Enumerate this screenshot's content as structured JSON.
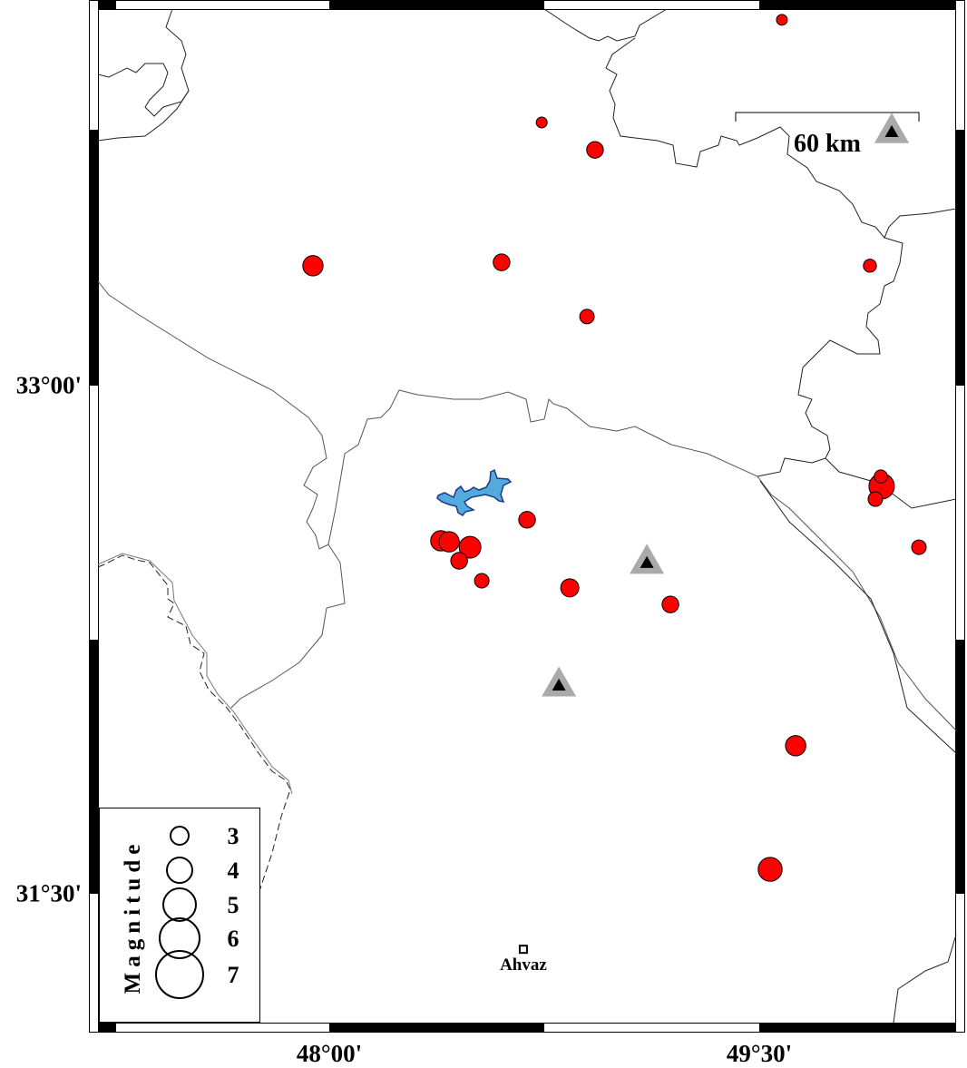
{
  "map": {
    "lat_labels": [
      "33°00'",
      "31°30'"
    ],
    "lon_labels": [
      "48°00'",
      "49°30'"
    ],
    "extent": {
      "lon_min": 47.2,
      "lon_max": 50.2,
      "lat_min": 31.2,
      "lat_max": 34.1
    },
    "colors": {
      "event_fill": "#ff0000",
      "lake_fill": "#55aadd",
      "lake_stroke": "#1a3a8a",
      "station_outer": "#aaaaaa",
      "station_inner": "#000000"
    }
  },
  "scale_bar": {
    "label": "60 km"
  },
  "legend": {
    "title": "Magnitude",
    "items": [
      {
        "label": "3",
        "m": 3
      },
      {
        "label": "4",
        "m": 4
      },
      {
        "label": "5",
        "m": 5
      },
      {
        "label": "6",
        "m": 6
      },
      {
        "label": "7",
        "m": 7
      }
    ]
  },
  "city": {
    "name": "Ahvaz",
    "lon": 48.677,
    "lat": 31.336
  },
  "stations": [
    {
      "lon": 49.962,
      "lat": 33.75
    },
    {
      "lon": 49.108,
      "lat": 32.478
    },
    {
      "lon": 48.801,
      "lat": 32.116
    }
  ],
  "events": [
    {
      "lon": 49.579,
      "lat": 34.08,
      "m": 2.0
    },
    {
      "lon": 48.741,
      "lat": 33.777,
      "m": 2.0
    },
    {
      "lon": 48.927,
      "lat": 33.696,
      "m": 2.8
    },
    {
      "lon": 47.943,
      "lat": 33.354,
      "m": 3.3
    },
    {
      "lon": 48.601,
      "lat": 33.364,
      "m": 2.8
    },
    {
      "lon": 48.899,
      "lat": 33.204,
      "m": 2.5
    },
    {
      "lon": 49.886,
      "lat": 33.354,
      "m": 2.3
    },
    {
      "lon": 49.927,
      "lat": 32.703,
      "m": 4.0
    },
    {
      "lon": 49.924,
      "lat": 32.732,
      "m": 2.3
    },
    {
      "lon": 49.905,
      "lat": 32.665,
      "m": 2.5
    },
    {
      "lon": 48.69,
      "lat": 32.604,
      "m": 2.8
    },
    {
      "lon": 48.389,
      "lat": 32.542,
      "m": 3.3
    },
    {
      "lon": 48.418,
      "lat": 32.539,
      "m": 3.3
    },
    {
      "lon": 48.491,
      "lat": 32.523,
      "m": 3.5
    },
    {
      "lon": 48.453,
      "lat": 32.483,
      "m": 2.8
    },
    {
      "lon": 48.532,
      "lat": 32.424,
      "m": 2.5
    },
    {
      "lon": 48.839,
      "lat": 32.403,
      "m": 3.0
    },
    {
      "lon": 49.19,
      "lat": 32.354,
      "m": 2.8
    },
    {
      "lon": 50.057,
      "lat": 32.523,
      "m": 2.5
    },
    {
      "lon": 49.627,
      "lat": 31.937,
      "m": 3.3
    },
    {
      "lon": 49.538,
      "lat": 31.572,
      "m": 3.8
    }
  ]
}
